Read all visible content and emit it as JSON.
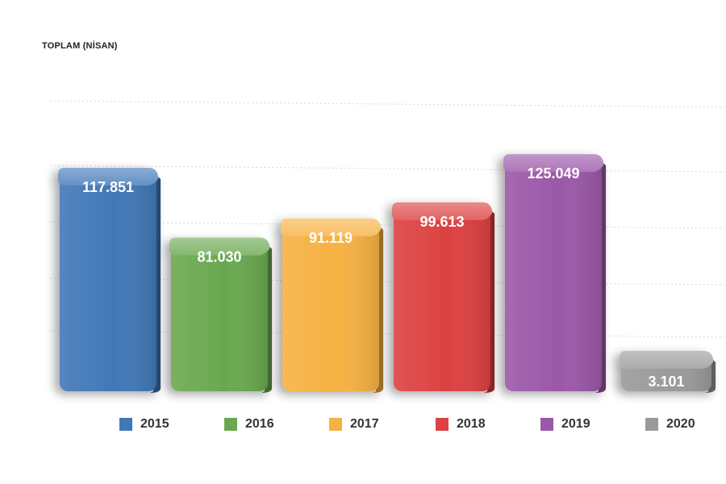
{
  "chart_data": {
    "type": "bar",
    "title": "TOPLAM (NİSAN)",
    "xlabel": "",
    "ylabel": "",
    "categories": [
      "2015",
      "2016",
      "2017",
      "2018",
      "2019",
      "2020"
    ],
    "values": [
      117851,
      81030,
      91119,
      99613,
      125049,
      3101
    ],
    "data_labels": [
      "117.851",
      "81.030",
      "91.119",
      "99.613",
      "125.049",
      "3.101"
    ],
    "colors": [
      "#4178b8",
      "#6aa84f",
      "#f6b142",
      "#dd4141",
      "#9b58a8",
      "#9a9a9a"
    ],
    "ylim": [
      0,
      140000
    ],
    "grid": true,
    "grid_style": "dotted",
    "legend_position": "bottom",
    "style": "3d-rounded"
  }
}
